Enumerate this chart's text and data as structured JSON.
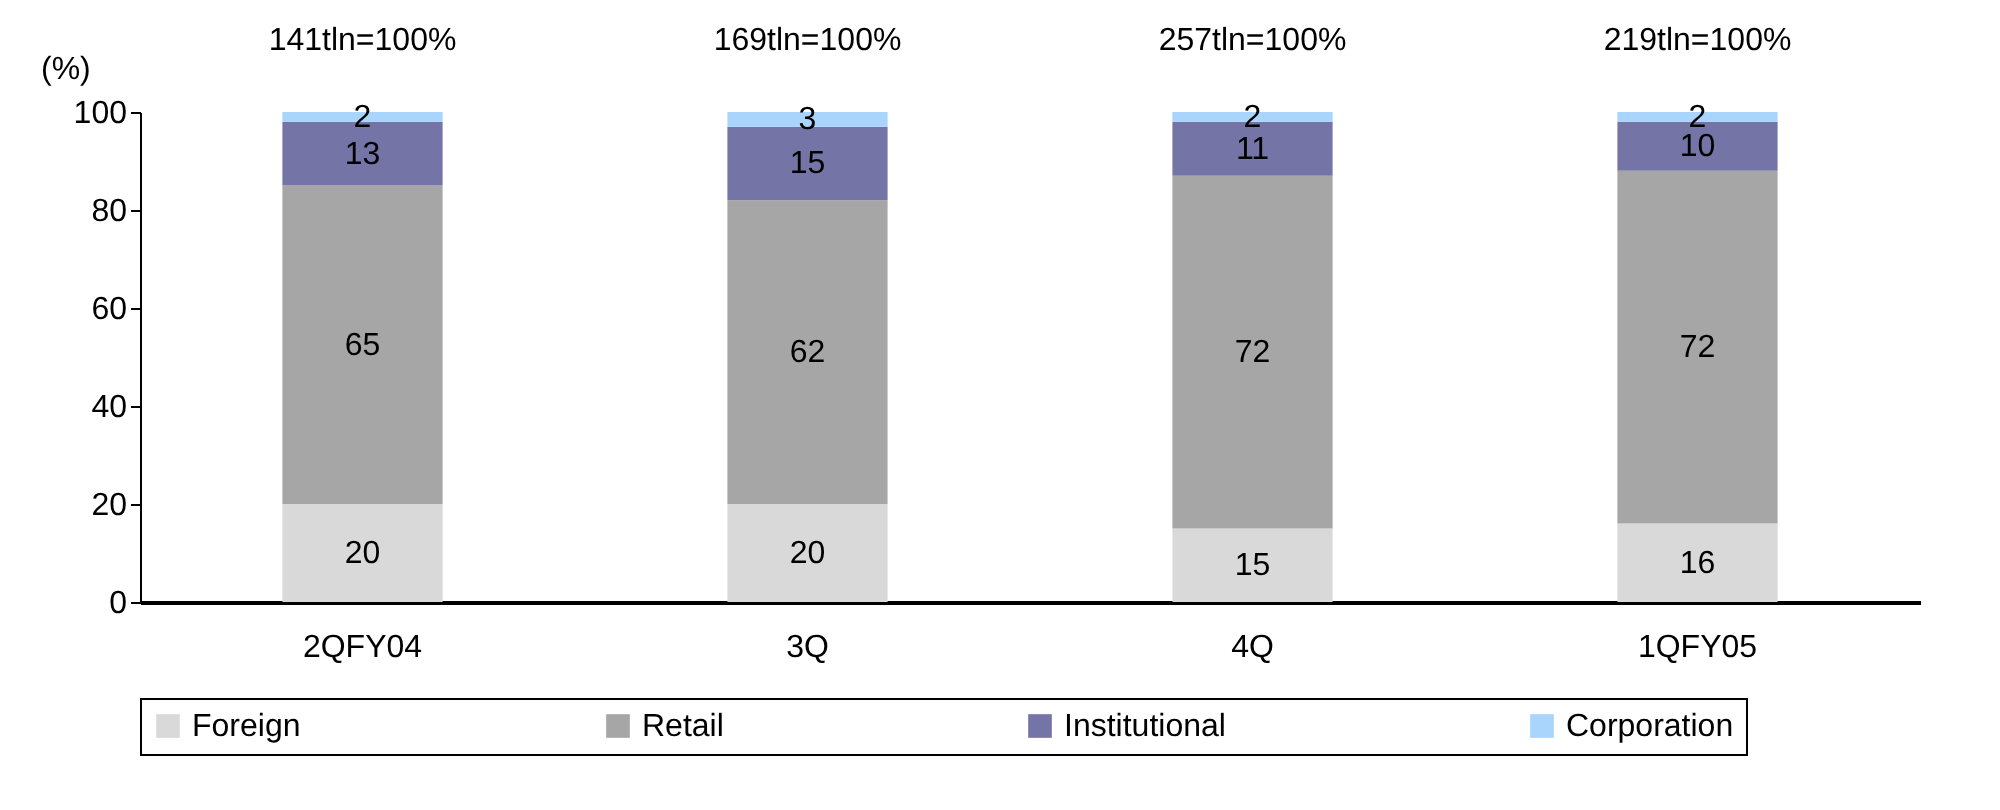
{
  "chart_data": {
    "type": "bar",
    "stacked": true,
    "ylabel": "(%)",
    "categories": [
      "2QFY04",
      "3Q",
      "4Q",
      "1QFY05"
    ],
    "series": [
      {
        "name": "Foreign",
        "color": "#d9d9d9",
        "values": [
          20,
          20,
          15,
          16
        ]
      },
      {
        "name": "Retail",
        "color": "#a6a6a6",
        "values": [
          65,
          62,
          72,
          72
        ]
      },
      {
        "name": "Institutional",
        "color": "#7474a6",
        "values": [
          13,
          15,
          11,
          10
        ]
      },
      {
        "name": "Corporation",
        "color": "#a9d4fb",
        "values": [
          2,
          3,
          2,
          2
        ]
      }
    ],
    "totals": [
      "141tln=100%",
      "169tln=100%",
      "257tln=100%",
      "219tln=100%"
    ],
    "data_labels": true,
    "ylim": [
      0,
      100
    ],
    "yticks": [
      0,
      20,
      40,
      60,
      80,
      100
    ],
    "legend": "bottom"
  }
}
